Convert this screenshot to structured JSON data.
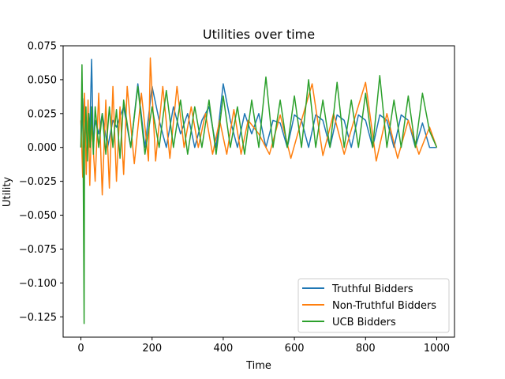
{
  "chart_data": {
    "type": "line",
    "title": "Utilities over time",
    "xlabel": "Time",
    "ylabel": "Utility",
    "xlim": [
      -50,
      1050
    ],
    "ylim": [
      -0.14,
      0.075
    ],
    "xticks": [
      0,
      200,
      400,
      600,
      800,
      1000
    ],
    "yticks": [
      -0.125,
      -0.1,
      -0.075,
      -0.05,
      -0.025,
      0.0,
      0.025,
      0.05,
      0.075
    ],
    "ytick_labels": [
      "−0.125",
      "−0.100",
      "−0.075",
      "−0.050",
      "−0.025",
      "0.000",
      "0.025",
      "0.050",
      "0.075"
    ],
    "grid": false,
    "legend_position": "lower-right",
    "series": [
      {
        "name": "Truthful Bidders",
        "color": "#1f77b4",
        "x": [
          0,
          5,
          10,
          15,
          20,
          25,
          30,
          35,
          40,
          50,
          60,
          75,
          90,
          100,
          120,
          140,
          160,
          180,
          200,
          220,
          240,
          260,
          280,
          300,
          320,
          340,
          360,
          380,
          400,
          420,
          440,
          460,
          480,
          500,
          520,
          540,
          560,
          580,
          600,
          620,
          640,
          660,
          680,
          700,
          720,
          740,
          760,
          780,
          800,
          820,
          840,
          860,
          880,
          900,
          920,
          940,
          960,
          980,
          1000
        ],
        "values": [
          0.0,
          0.036,
          0.0,
          0.02,
          0.0,
          0.01,
          0.065,
          0.0,
          0.02,
          0.01,
          0.025,
          0.0,
          0.02,
          0.015,
          0.03,
          0.0,
          0.047,
          0.0,
          0.045,
          0.02,
          0.0,
          0.03,
          0.01,
          0.025,
          0.0,
          0.02,
          0.03,
          0.0,
          0.047,
          0.02,
          0.0,
          0.025,
          0.01,
          0.025,
          0.0,
          0.02,
          0.018,
          0.0,
          0.024,
          0.02,
          0.0,
          0.024,
          0.02,
          0.0,
          0.024,
          0.02,
          0.0,
          0.024,
          0.02,
          0.0,
          0.024,
          0.02,
          0.0,
          0.024,
          0.02,
          0.0,
          0.018,
          0.0,
          0.0
        ]
      },
      {
        "name": "Non-Truthful Bidders",
        "color": "#ff7f0e",
        "x": [
          0,
          5,
          10,
          15,
          20,
          25,
          30,
          40,
          50,
          60,
          70,
          80,
          90,
          100,
          110,
          120,
          130,
          150,
          170,
          190,
          195,
          210,
          230,
          250,
          270,
          290,
          310,
          330,
          350,
          370,
          390,
          410,
          430,
          450,
          470,
          500,
          530,
          560,
          590,
          620,
          650,
          680,
          710,
          740,
          770,
          800,
          830,
          860,
          890,
          920,
          950,
          980,
          1000
        ],
        "values": [
          0.02,
          -0.022,
          0.04,
          -0.02,
          0.035,
          -0.028,
          0.02,
          -0.025,
          0.04,
          -0.035,
          0.035,
          -0.03,
          0.045,
          -0.025,
          0.03,
          -0.02,
          0.045,
          -0.012,
          0.04,
          -0.01,
          0.066,
          -0.01,
          0.045,
          -0.008,
          0.045,
          0.0,
          0.03,
          0.0,
          0.025,
          -0.005,
          0.02,
          -0.005,
          0.028,
          -0.005,
          0.02,
          0.01,
          -0.005,
          0.024,
          -0.008,
          0.02,
          0.047,
          -0.006,
          0.025,
          -0.005,
          0.022,
          0.048,
          -0.01,
          0.025,
          -0.008,
          0.02,
          -0.005,
          0.015,
          0.0
        ]
      },
      {
        "name": "UCB Bidders",
        "color": "#2ca02c",
        "x": [
          0,
          3,
          6,
          9,
          10,
          14,
          18,
          22,
          26,
          30,
          35,
          40,
          50,
          60,
          70,
          80,
          90,
          100,
          110,
          120,
          140,
          160,
          180,
          200,
          220,
          240,
          260,
          280,
          300,
          320,
          340,
          360,
          380,
          400,
          420,
          440,
          460,
          480,
          500,
          520,
          540,
          560,
          580,
          600,
          620,
          640,
          660,
          680,
          700,
          720,
          740,
          760,
          780,
          800,
          820,
          840,
          860,
          880,
          900,
          920,
          940,
          960,
          980,
          1000
        ],
        "values": [
          0.0,
          0.061,
          0.0,
          -0.13,
          0.0,
          0.03,
          -0.01,
          0.025,
          0.0,
          0.03,
          -0.005,
          0.03,
          0.0,
          0.025,
          -0.005,
          0.03,
          0.0,
          0.028,
          -0.008,
          0.035,
          0.0,
          0.045,
          -0.005,
          0.03,
          0.0,
          0.042,
          0.0,
          0.035,
          -0.005,
          0.03,
          0.0,
          0.035,
          -0.005,
          0.038,
          0.0,
          0.03,
          -0.005,
          0.035,
          0.0,
          0.052,
          0.0,
          0.035,
          0.0,
          0.038,
          0.0,
          0.05,
          0.0,
          0.035,
          0.0,
          0.048,
          0.0,
          0.035,
          0.0,
          0.04,
          0.0,
          0.053,
          0.0,
          0.035,
          0.0,
          0.038,
          0.0,
          0.04,
          0.012,
          0.0
        ]
      }
    ]
  }
}
